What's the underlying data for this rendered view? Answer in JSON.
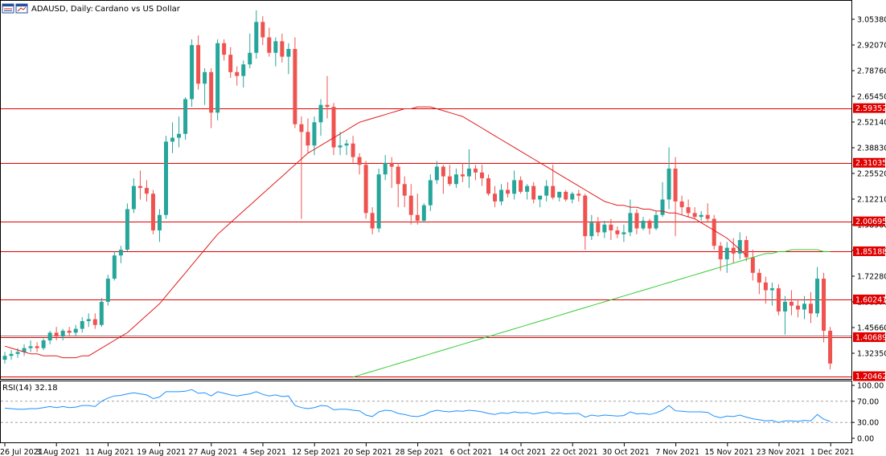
{
  "header": {
    "symbol_label": "ADAUSD, Daily:",
    "description": "Cardano vs US Dollar",
    "icon_names": [
      "window-list-icon",
      "chart-window-icon"
    ]
  },
  "rsi_label": "RSI(14) 32.18",
  "colors": {
    "bull": "#26a69a",
    "bear": "#ef5350",
    "level_line": "#e00000",
    "ma_fast": "#e01b1b",
    "ma_slow": "#33cc33",
    "rsi": "#1e90ff",
    "frame": "#000000",
    "price_tag": "#e00000"
  },
  "chart_data": [
    {
      "type": "candlestick",
      "title": "ADAUSD, Daily: Cardano vs US Dollar",
      "ylim": [
        1.2,
        3.1
      ],
      "y_ticks": [
        "3.05380",
        "2.92070",
        "2.78760",
        "2.65450",
        "2.52140",
        "2.38830",
        "2.25520",
        "2.12210",
        "1.98900",
        "1.85590",
        "1.72280",
        "1.58970",
        "1.45660",
        "1.32350"
      ],
      "x_ticks": [
        "26 Jul 2021",
        "3 Aug 2021",
        "11 Aug 2021",
        "19 Aug 2021",
        "27 Aug 2021",
        "4 Sep 2021",
        "12 Sep 2021",
        "20 Sep 2021",
        "28 Sep 2021",
        "6 Oct 2021",
        "14 Oct 2021",
        "22 Oct 2021",
        "30 Oct 2021",
        "7 Nov 2021",
        "15 Nov 2021",
        "23 Nov 2021",
        "1 Dec 2021"
      ],
      "horizontal_levels": [
        "2.59352",
        "2.31035",
        "2.00695",
        "1.85188",
        "1.60241",
        "1.40689",
        "1.20462"
      ],
      "ohlc": [
        [
          1.29,
          1.33,
          1.27,
          1.31
        ],
        [
          1.31,
          1.34,
          1.29,
          1.32
        ],
        [
          1.32,
          1.35,
          1.3,
          1.33
        ],
        [
          1.33,
          1.37,
          1.31,
          1.35
        ],
        [
          1.35,
          1.39,
          1.33,
          1.36
        ],
        [
          1.36,
          1.38,
          1.33,
          1.35
        ],
        [
          1.35,
          1.4,
          1.34,
          1.39
        ],
        [
          1.39,
          1.44,
          1.37,
          1.43
        ],
        [
          1.43,
          1.46,
          1.39,
          1.41
        ],
        [
          1.41,
          1.45,
          1.39,
          1.44
        ],
        [
          1.44,
          1.46,
          1.41,
          1.43
        ],
        [
          1.43,
          1.47,
          1.41,
          1.45
        ],
        [
          1.45,
          1.51,
          1.43,
          1.49
        ],
        [
          1.49,
          1.53,
          1.46,
          1.5
        ],
        [
          1.5,
          1.53,
          1.45,
          1.47
        ],
        [
          1.47,
          1.61,
          1.46,
          1.59
        ],
        [
          1.59,
          1.73,
          1.57,
          1.71
        ],
        [
          1.71,
          1.85,
          1.7,
          1.83
        ],
        [
          1.83,
          1.88,
          1.79,
          1.86
        ],
        [
          1.86,
          2.1,
          1.85,
          2.07
        ],
        [
          2.07,
          2.23,
          2.05,
          2.19
        ],
        [
          2.19,
          2.27,
          2.12,
          2.18
        ],
        [
          2.18,
          2.22,
          2.11,
          2.15
        ],
        [
          2.15,
          2.17,
          1.94,
          1.96
        ],
        [
          1.96,
          2.07,
          1.9,
          2.04
        ],
        [
          2.04,
          2.45,
          2.02,
          2.42
        ],
        [
          2.42,
          2.52,
          2.36,
          2.44
        ],
        [
          2.44,
          2.55,
          2.39,
          2.46
        ],
        [
          2.46,
          2.65,
          2.43,
          2.64
        ],
        [
          2.64,
          2.95,
          2.6,
          2.92
        ],
        [
          2.92,
          2.97,
          2.69,
          2.72
        ],
        [
          2.72,
          2.8,
          2.61,
          2.78
        ],
        [
          2.78,
          2.8,
          2.49,
          2.57
        ],
        [
          2.57,
          2.95,
          2.53,
          2.93
        ],
        [
          2.93,
          2.95,
          2.84,
          2.87
        ],
        [
          2.87,
          2.91,
          2.75,
          2.78
        ],
        [
          2.78,
          2.81,
          2.71,
          2.76
        ],
        [
          2.76,
          2.84,
          2.7,
          2.82
        ],
        [
          2.82,
          2.98,
          2.8,
          2.88
        ],
        [
          2.88,
          3.1,
          2.85,
          3.04
        ],
        [
          3.04,
          3.07,
          2.92,
          2.96
        ],
        [
          2.96,
          3.01,
          2.86,
          2.88
        ],
        [
          2.88,
          2.96,
          2.81,
          2.94
        ],
        [
          2.94,
          2.98,
          2.83,
          2.86
        ],
        [
          2.86,
          2.93,
          2.77,
          2.9
        ],
        [
          2.9,
          2.96,
          2.49,
          2.51
        ],
        [
          2.51,
          2.55,
          2.02,
          2.47
        ],
        [
          2.47,
          2.54,
          2.36,
          2.4
        ],
        [
          2.4,
          2.55,
          2.35,
          2.52
        ],
        [
          2.52,
          2.64,
          2.45,
          2.61
        ],
        [
          2.61,
          2.76,
          2.54,
          2.6
        ],
        [
          2.6,
          2.62,
          2.35,
          2.39
        ],
        [
          2.39,
          2.47,
          2.35,
          2.4
        ],
        [
          2.4,
          2.43,
          2.35,
          2.41
        ],
        [
          2.41,
          2.45,
          2.31,
          2.34
        ],
        [
          2.34,
          2.36,
          2.25,
          2.3
        ],
        [
          2.3,
          2.32,
          2.02,
          2.05
        ],
        [
          2.05,
          2.08,
          1.94,
          1.97
        ],
        [
          1.97,
          2.28,
          1.95,
          2.25
        ],
        [
          2.25,
          2.35,
          2.22,
          2.31
        ],
        [
          2.31,
          2.34,
          2.18,
          2.29
        ],
        [
          2.29,
          2.31,
          2.08,
          2.2
        ],
        [
          2.2,
          2.24,
          2.08,
          2.14
        ],
        [
          2.14,
          2.2,
          1.99,
          2.04
        ],
        [
          2.04,
          2.15,
          1.99,
          2.01
        ],
        [
          2.01,
          2.1,
          2.0,
          2.09
        ],
        [
          2.09,
          2.25,
          2.06,
          2.22
        ],
        [
          2.22,
          2.32,
          2.2,
          2.29
        ],
        [
          2.29,
          2.3,
          2.15,
          2.24
        ],
        [
          2.24,
          2.3,
          2.19,
          2.2
        ],
        [
          2.2,
          2.28,
          2.18,
          2.25
        ],
        [
          2.25,
          2.31,
          2.21,
          2.24
        ],
        [
          2.24,
          2.38,
          2.18,
          2.28
        ],
        [
          2.28,
          2.3,
          2.22,
          2.26
        ],
        [
          2.26,
          2.3,
          2.19,
          2.23
        ],
        [
          2.23,
          2.25,
          2.14,
          2.15
        ],
        [
          2.15,
          2.19,
          2.08,
          2.11
        ],
        [
          2.11,
          2.2,
          2.09,
          2.17
        ],
        [
          2.17,
          2.21,
          2.13,
          2.15
        ],
        [
          2.15,
          2.27,
          2.12,
          2.22
        ],
        [
          2.22,
          2.24,
          2.15,
          2.16
        ],
        [
          2.16,
          2.2,
          2.12,
          2.19
        ],
        [
          2.19,
          2.21,
          2.1,
          2.12
        ],
        [
          2.12,
          2.14,
          2.08,
          2.14
        ],
        [
          2.14,
          2.22,
          2.11,
          2.19
        ],
        [
          2.19,
          2.3,
          2.12,
          2.13
        ],
        [
          2.13,
          2.16,
          2.11,
          2.16
        ],
        [
          2.16,
          2.17,
          2.11,
          2.12
        ],
        [
          2.12,
          2.16,
          2.1,
          2.15
        ],
        [
          2.15,
          2.17,
          2.11,
          2.14
        ],
        [
          2.14,
          2.15,
          1.86,
          1.93
        ],
        [
          1.93,
          2.04,
          1.91,
          2.0
        ],
        [
          2.0,
          2.03,
          1.93,
          1.95
        ],
        [
          1.95,
          2.01,
          1.92,
          1.99
        ],
        [
          1.99,
          2.02,
          1.91,
          1.96
        ],
        [
          1.96,
          1.98,
          1.92,
          1.94
        ],
        [
          1.94,
          1.99,
          1.9,
          1.95
        ],
        [
          1.95,
          2.12,
          1.93,
          2.05
        ],
        [
          2.05,
          2.07,
          1.94,
          1.97
        ],
        [
          1.97,
          2.03,
          1.96,
          2.01
        ],
        [
          2.01,
          2.02,
          1.94,
          1.97
        ],
        [
          1.97,
          2.06,
          1.96,
          2.04
        ],
        [
          2.04,
          2.21,
          2.03,
          2.12
        ],
        [
          2.12,
          2.39,
          2.07,
          2.28
        ],
        [
          2.28,
          2.34,
          1.93,
          2.11
        ],
        [
          2.11,
          2.14,
          2.04,
          2.08
        ],
        [
          2.08,
          2.12,
          2.03,
          2.05
        ],
        [
          2.05,
          2.08,
          2.02,
          2.03
        ],
        [
          2.03,
          2.06,
          2.01,
          2.04
        ],
        [
          2.04,
          2.1,
          2.0,
          2.02
        ],
        [
          2.02,
          2.04,
          1.86,
          1.88
        ],
        [
          1.88,
          1.9,
          1.75,
          1.81
        ],
        [
          1.81,
          1.9,
          1.74,
          1.87
        ],
        [
          1.87,
          1.92,
          1.79,
          1.84
        ],
        [
          1.84,
          1.95,
          1.81,
          1.91
        ],
        [
          1.91,
          1.93,
          1.8,
          1.82
        ],
        [
          1.82,
          1.86,
          1.7,
          1.74
        ],
        [
          1.74,
          1.76,
          1.63,
          1.69
        ],
        [
          1.69,
          1.72,
          1.58,
          1.65
        ],
        [
          1.65,
          1.69,
          1.57,
          1.66
        ],
        [
          1.66,
          1.68,
          1.52,
          1.54
        ],
        [
          1.54,
          1.62,
          1.42,
          1.59
        ],
        [
          1.59,
          1.65,
          1.52,
          1.57
        ],
        [
          1.57,
          1.6,
          1.51,
          1.55
        ],
        [
          1.55,
          1.62,
          1.5,
          1.58
        ],
        [
          1.58,
          1.64,
          1.48,
          1.53
        ],
        [
          1.53,
          1.77,
          1.51,
          1.71
        ],
        [
          1.71,
          1.74,
          1.38,
          1.44
        ],
        [
          1.44,
          1.46,
          1.24,
          1.27
        ]
      ],
      "ma_fast": [
        1.36,
        1.35,
        1.34,
        1.33,
        1.32,
        1.32,
        1.31,
        1.31,
        1.31,
        1.3,
        1.3,
        1.3,
        1.31,
        1.31,
        1.33,
        1.35,
        1.37,
        1.39,
        1.41,
        1.43,
        1.46,
        1.49,
        1.52,
        1.55,
        1.58,
        1.62,
        1.66,
        1.7,
        1.74,
        1.78,
        1.82,
        1.86,
        1.9,
        1.94,
        1.97,
        2.0,
        2.03,
        2.06,
        2.09,
        2.12,
        2.15,
        2.18,
        2.21,
        2.24,
        2.27,
        2.3,
        2.33,
        2.36,
        2.38,
        2.4,
        2.42,
        2.44,
        2.46,
        2.48,
        2.5,
        2.52,
        2.53,
        2.54,
        2.55,
        2.56,
        2.57,
        2.58,
        2.59,
        2.59,
        2.6,
        2.6,
        2.6,
        2.59,
        2.58,
        2.57,
        2.56,
        2.55,
        2.53,
        2.51,
        2.49,
        2.47,
        2.45,
        2.43,
        2.41,
        2.39,
        2.37,
        2.35,
        2.33,
        2.31,
        2.29,
        2.27,
        2.25,
        2.23,
        2.21,
        2.19,
        2.17,
        2.15,
        2.13,
        2.11,
        2.1,
        2.09,
        2.09,
        2.08,
        2.08,
        2.07,
        2.07,
        2.06,
        2.06,
        2.05,
        2.05,
        2.04,
        2.03,
        2.02,
        2.0,
        1.98,
        1.96,
        1.94,
        1.92,
        1.89,
        1.86,
        1.83
      ],
      "ma_slow": [
        1.2,
        1.21,
        1.22,
        1.23,
        1.24,
        1.25,
        1.26,
        1.27,
        1.28,
        1.29,
        1.3,
        1.31,
        1.32,
        1.33,
        1.34,
        1.35,
        1.36,
        1.37,
        1.38,
        1.39,
        1.4,
        1.41,
        1.42,
        1.43,
        1.44,
        1.45,
        1.46,
        1.47,
        1.48,
        1.49,
        1.5,
        1.51,
        1.52,
        1.53,
        1.54,
        1.55,
        1.56,
        1.57,
        1.58,
        1.59,
        1.6,
        1.61,
        1.62,
        1.63,
        1.64,
        1.65,
        1.66,
        1.67,
        1.68,
        1.69,
        1.7,
        1.71,
        1.72,
        1.73,
        1.74,
        1.75,
        1.76,
        1.77,
        1.78,
        1.79,
        1.8,
        1.81,
        1.82,
        1.83,
        1.84,
        1.84,
        1.85,
        1.85,
        1.86,
        1.86,
        1.86,
        1.86,
        1.86,
        1.85,
        1.85
      ],
      "ma_fast_start_index": 0,
      "ma_slow_start_index": 54
    },
    {
      "type": "line",
      "title": "RSI(14) 32.18",
      "ylim": [
        0,
        100
      ],
      "y_ticks": [
        "100.00",
        "70.00",
        "30.00",
        "0.00"
      ],
      "dashed_levels": [
        70,
        30
      ],
      "values": [
        57,
        56,
        55,
        55,
        56,
        56,
        58,
        60,
        58,
        60,
        58,
        59,
        62,
        62,
        60,
        70,
        76,
        80,
        81,
        84,
        86,
        84,
        82,
        75,
        78,
        88,
        88,
        88,
        89,
        92,
        85,
        86,
        80,
        88,
        85,
        82,
        80,
        82,
        84,
        88,
        83,
        80,
        82,
        79,
        80,
        62,
        58,
        56,
        58,
        62,
        61,
        54,
        55,
        55,
        53,
        52,
        44,
        41,
        50,
        53,
        52,
        47,
        45,
        42,
        41,
        44,
        50,
        53,
        51,
        50,
        52,
        51,
        53,
        52,
        50,
        47,
        45,
        48,
        47,
        50,
        48,
        49,
        46,
        48,
        50,
        47,
        48,
        46,
        47,
        47,
        40,
        44,
        42,
        44,
        43,
        42,
        43,
        50,
        46,
        47,
        45,
        48,
        53,
        62,
        52,
        51,
        50,
        50,
        50,
        49,
        42,
        39,
        42,
        41,
        44,
        40,
        37,
        35,
        33,
        34,
        30,
        33,
        33,
        32,
        34,
        33,
        45,
        36,
        32
      ]
    }
  ]
}
